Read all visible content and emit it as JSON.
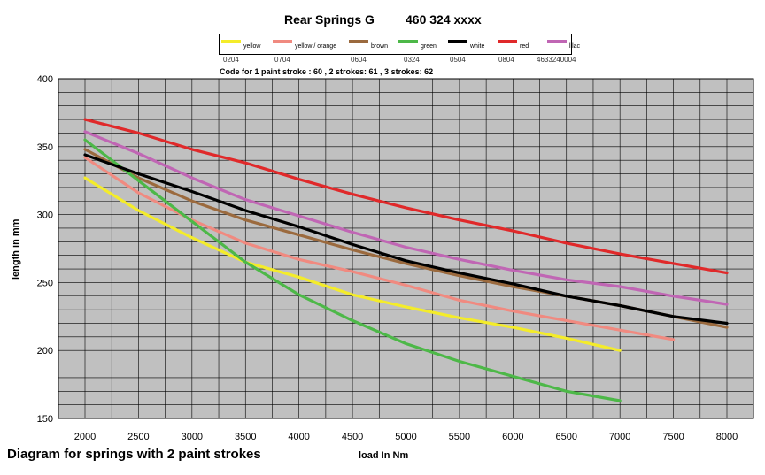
{
  "chart_data": {
    "type": "line",
    "title_main": "Rear Springs  G",
    "title_part": "460 324 xxxx",
    "subtitle": "Code for 1 paint stroke : 60 , 2 strokes: 61 , 3 strokes: 62",
    "caption": "Diagram for springs with 2 paint strokes",
    "xlabel": "load In Nm",
    "ylabel": "length in mm",
    "xlim": [
      1750,
      8250
    ],
    "ylim": [
      150,
      400
    ],
    "x_ticks": [
      "2000",
      "2500",
      "3000",
      "3500",
      "4000",
      "4500",
      "5000",
      "5500",
      "6000",
      "6500",
      "7000",
      "7500",
      "8000"
    ],
    "y_ticks": [
      "150",
      "200",
      "250",
      "300",
      "350",
      "400"
    ],
    "grid": true,
    "legend_position": "top",
    "series": [
      {
        "name": "yellow",
        "code": "0204",
        "color": "#f4ec2a",
        "x": [
          2000,
          2500,
          3000,
          3500,
          4000,
          4500,
          5000,
          5500,
          6000,
          6500,
          7000
        ],
        "y": [
          327,
          303,
          283,
          265,
          254,
          241,
          232,
          224,
          217,
          209,
          200
        ]
      },
      {
        "name": "yellow / orange",
        "code": "0704",
        "color": "#f08a80",
        "x": [
          2000,
          2500,
          3000,
          3500,
          4000,
          4500,
          5000,
          5500,
          6000,
          6500,
          7000,
          7500
        ],
        "y": [
          342,
          316,
          296,
          279,
          267,
          258,
          248,
          237,
          229,
          222,
          215,
          208
        ]
      },
      {
        "name": "brown",
        "code": "0604",
        "color": "#9b6a3e",
        "x": [
          2000,
          2500,
          3000,
          3500,
          4000,
          4500,
          5000,
          5500,
          6000,
          6500,
          7000,
          7500,
          8000
        ],
        "y": [
          348,
          327,
          310,
          296,
          285,
          274,
          264,
          255,
          247,
          240,
          233,
          225,
          217
        ]
      },
      {
        "name": "green",
        "code": "0324",
        "color": "#4db848",
        "x": [
          2000,
          2500,
          3000,
          3500,
          4000,
          4500,
          5000,
          5500,
          6000,
          6500,
          7000
        ],
        "y": [
          355,
          325,
          295,
          265,
          241,
          222,
          205,
          192,
          181,
          170,
          163
        ]
      },
      {
        "name": "white",
        "code": "0504",
        "color": "#000000",
        "x": [
          2000,
          2500,
          3000,
          3500,
          4000,
          4500,
          5000,
          5500,
          6000,
          6500,
          7000,
          7500,
          8000
        ],
        "y": [
          344,
          330,
          317,
          303,
          291,
          278,
          266,
          257,
          249,
          240,
          233,
          225,
          220
        ]
      },
      {
        "name": "red",
        "code": "0804",
        "color": "#e0292a",
        "x": [
          2000,
          2500,
          3000,
          3500,
          4000,
          4500,
          5000,
          5500,
          6000,
          6500,
          7000,
          7500,
          8000
        ],
        "y": [
          370,
          360,
          348,
          338,
          326,
          315,
          305,
          296,
          288,
          279,
          271,
          264,
          257
        ]
      },
      {
        "name": "lilac",
        "code": "4633240004",
        "color": "#c066b4",
        "x": [
          2000,
          2500,
          3000,
          3500,
          4000,
          4500,
          5000,
          5500,
          6000,
          6500,
          7000,
          7500,
          8000
        ],
        "y": [
          361,
          345,
          327,
          311,
          299,
          287,
          276,
          267,
          259,
          252,
          247,
          240,
          234
        ]
      }
    ]
  }
}
